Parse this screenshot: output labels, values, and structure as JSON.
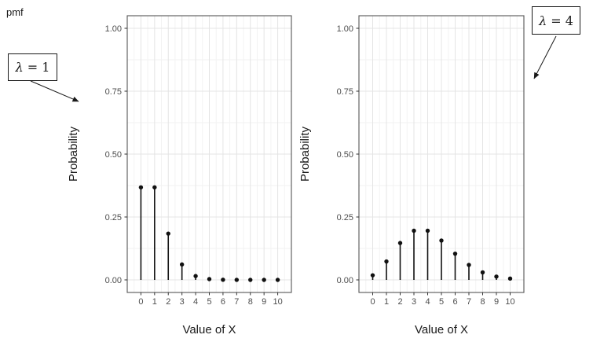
{
  "page": {
    "corner_label": "pmf"
  },
  "annotations": [
    {
      "symbol": "λ",
      "rest": "= 1"
    },
    {
      "symbol": "λ",
      "rest": "= 4"
    }
  ],
  "chart_data": [
    {
      "type": "scatter",
      "mark": "stem",
      "title": "",
      "xlabel": "Value of X",
      "ylabel": "Probability",
      "annotation": "λ = 1",
      "x": [
        0,
        1,
        2,
        3,
        4,
        5,
        6,
        7,
        8,
        9,
        10
      ],
      "values": [
        0.3679,
        0.3679,
        0.1839,
        0.0613,
        0.0153,
        0.0031,
        0.0005,
        0.0001,
        0.0,
        0.0,
        0.0
      ],
      "xlim": [
        -1,
        11
      ],
      "ylim": [
        -0.05,
        1.05
      ],
      "xticks": [
        0,
        1,
        2,
        3,
        4,
        5,
        6,
        7,
        8,
        9,
        10
      ],
      "xtick_labels": [
        "0",
        "1",
        "2",
        "3",
        "4",
        "5",
        "6",
        "7",
        "8",
        "9",
        "10"
      ],
      "yticks": [
        0,
        0.25,
        0.5,
        0.75,
        1
      ],
      "ytick_labels": [
        "0.00",
        "0.25",
        "0.50",
        "0.75",
        "1.00"
      ],
      "grid": true,
      "legend": false
    },
    {
      "type": "scatter",
      "mark": "stem",
      "title": "",
      "xlabel": "Value of X",
      "ylabel": "Probability",
      "annotation": "λ = 4",
      "x": [
        0,
        1,
        2,
        3,
        4,
        5,
        6,
        7,
        8,
        9,
        10
      ],
      "values": [
        0.0183,
        0.0733,
        0.1465,
        0.1954,
        0.1954,
        0.1563,
        0.1042,
        0.0595,
        0.0298,
        0.0132,
        0.0053
      ],
      "xlim": [
        -1,
        11
      ],
      "ylim": [
        -0.05,
        1.05
      ],
      "xticks": [
        0,
        1,
        2,
        3,
        4,
        5,
        6,
        7,
        8,
        9,
        10
      ],
      "xtick_labels": [
        "0",
        "1",
        "2",
        "3",
        "4",
        "5",
        "6",
        "7",
        "8",
        "9",
        "10"
      ],
      "yticks": [
        0,
        0.25,
        0.5,
        0.75,
        1
      ],
      "ytick_labels": [
        "0.00",
        "0.25",
        "0.50",
        "0.75",
        "1.00"
      ],
      "grid": true,
      "legend": false
    }
  ],
  "colors": {
    "background": "#ffffff",
    "panel_background": "#ffffff",
    "panel_border": "#555555",
    "grid_major": "#e4e4e4",
    "grid_minor": "#f2f2f2",
    "stem": "#111111",
    "point": "#111111",
    "tick_mark": "#333333",
    "tick_label": "#4d4d4d",
    "axis_title": "#1a1a1a",
    "annotation_border": "#1a1a1a",
    "arrow": "#1a1a1a"
  }
}
